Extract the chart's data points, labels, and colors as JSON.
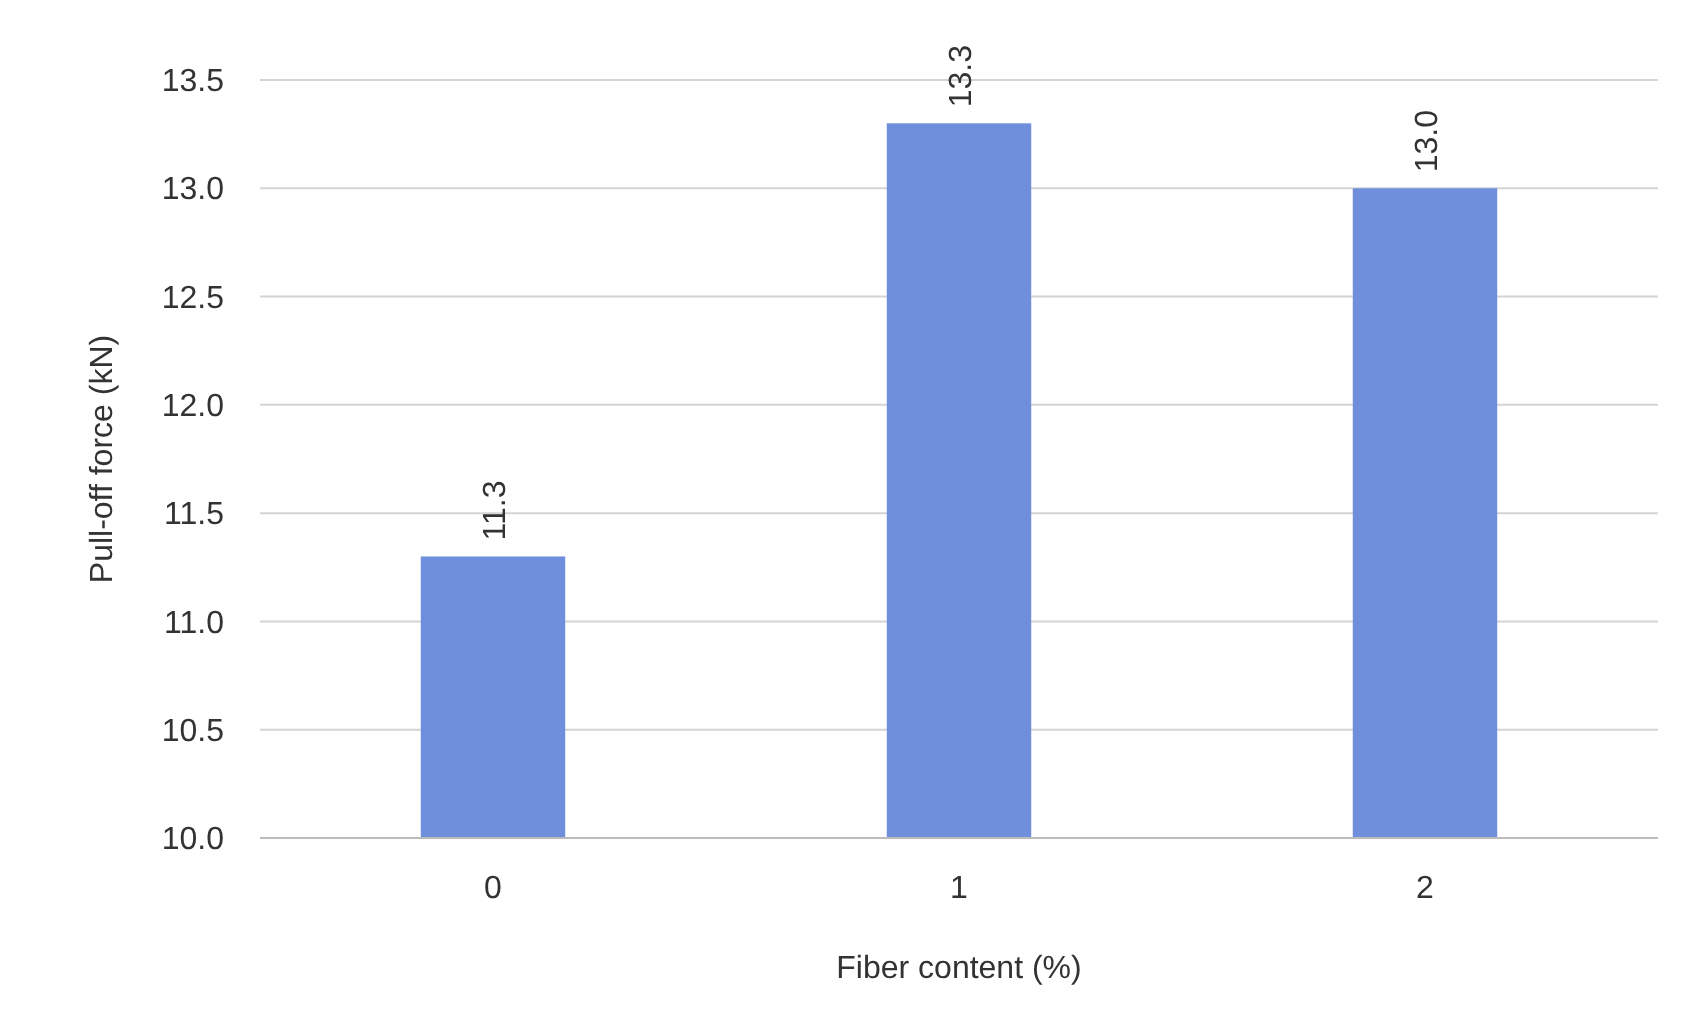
{
  "chart_data": {
    "type": "bar",
    "xlabel": "Fiber content (%)",
    "ylabel": "Pull-off force (kN)",
    "categories": [
      "0",
      "1",
      "2"
    ],
    "values": [
      11.3,
      13.3,
      13.0
    ],
    "value_labels": [
      "11.3",
      "13.3",
      "13.0"
    ],
    "color": "#6f8fdc",
    "ylim": [
      10,
      13.5
    ],
    "yticks": [
      {
        "value": 10,
        "label": "10.0"
      },
      {
        "value": 10.5,
        "label": "10.5"
      },
      {
        "value": 11,
        "label": "11.0"
      },
      {
        "value": 11.5,
        "label": "11.5"
      },
      {
        "value": 12,
        "label": "12.0"
      },
      {
        "value": 12.5,
        "label": "12.5"
      },
      {
        "value": 13,
        "label": "13.0"
      },
      {
        "value": 13.5,
        "label": "13.5"
      }
    ],
    "grid": "y"
  }
}
